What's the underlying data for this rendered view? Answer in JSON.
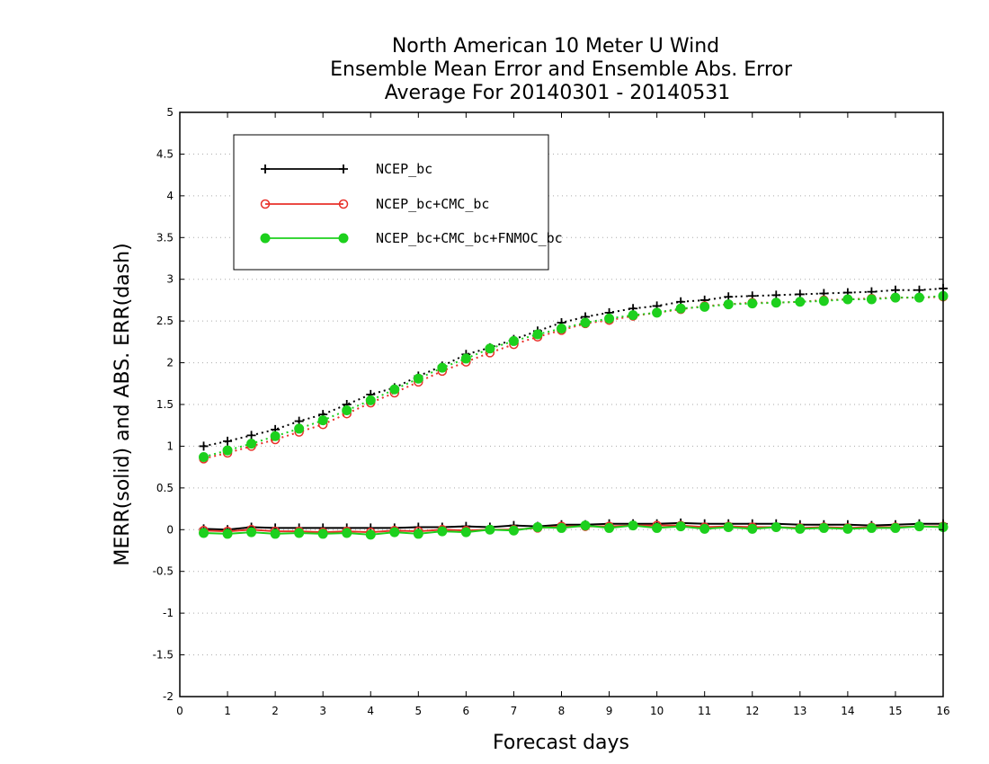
{
  "chart_data": {
    "type": "line",
    "title_lines": [
      "North American 10 Meter U Wind",
      "Ensemble Mean Error and Ensemble Abs. Error",
      "Average For 20140301 - 20140531"
    ],
    "xlabel": "Forecast days",
    "ylabel": "MERR(solid) and ABS. ERR(dash)",
    "xlim": [
      0,
      16
    ],
    "ylim": [
      -2,
      5
    ],
    "x_ticks": [
      "0",
      "1",
      "2",
      "3",
      "4",
      "5",
      "6",
      "7",
      "8",
      "9",
      "10",
      "11",
      "12",
      "13",
      "14",
      "15",
      "16"
    ],
    "y_ticks": [
      "-2",
      "-1.5",
      "-1",
      "-0.5",
      "0",
      "0.5",
      "1",
      "1.5",
      "2",
      "2.5",
      "3",
      "3.5",
      "4",
      "4.5",
      "5"
    ],
    "grid": "horizontal dotted",
    "legend_position": "top-left",
    "x": [
      0.5,
      1,
      1.5,
      2,
      2.5,
      3,
      3.5,
      4,
      4.5,
      5,
      5.5,
      6,
      6.5,
      7,
      7.5,
      8,
      8.5,
      9,
      9.5,
      10,
      10.5,
      11,
      11.5,
      12,
      12.5,
      13,
      13.5,
      14,
      14.5,
      15,
      15.5,
      16
    ],
    "series": [
      {
        "name": "NCEP_bc",
        "color": "#000000",
        "marker": "plus",
        "merr": [
          0.01,
          0.0,
          0.03,
          0.02,
          0.02,
          0.02,
          0.02,
          0.02,
          0.02,
          0.03,
          0.03,
          0.04,
          0.03,
          0.05,
          0.04,
          0.06,
          0.06,
          0.07,
          0.07,
          0.07,
          0.08,
          0.07,
          0.07,
          0.07,
          0.07,
          0.06,
          0.06,
          0.06,
          0.05,
          0.06,
          0.07,
          0.07
        ],
        "abs_err": [
          1.0,
          1.06,
          1.13,
          1.2,
          1.3,
          1.38,
          1.5,
          1.62,
          1.7,
          1.84,
          1.96,
          2.1,
          2.18,
          2.28,
          2.38,
          2.48,
          2.55,
          2.6,
          2.65,
          2.68,
          2.73,
          2.75,
          2.79,
          2.8,
          2.81,
          2.82,
          2.83,
          2.84,
          2.85,
          2.87,
          2.87,
          2.89
        ]
      },
      {
        "name": "NCEP_bc+CMC_bc",
        "color": "#e8312a",
        "marker": "circle",
        "merr": [
          -0.01,
          -0.02,
          0.0,
          -0.02,
          -0.02,
          -0.03,
          -0.02,
          -0.03,
          -0.01,
          -0.02,
          0.0,
          -0.01,
          0.0,
          0.0,
          0.02,
          0.04,
          0.04,
          0.04,
          0.05,
          0.05,
          0.05,
          0.03,
          0.04,
          0.03,
          0.03,
          0.02,
          0.03,
          0.02,
          0.03,
          0.03,
          0.04,
          0.04
        ],
        "abs_err": [
          0.85,
          0.92,
          1.0,
          1.08,
          1.17,
          1.26,
          1.39,
          1.52,
          1.64,
          1.77,
          1.9,
          2.01,
          2.12,
          2.22,
          2.31,
          2.39,
          2.47,
          2.51,
          2.56,
          2.6,
          2.64,
          2.68,
          2.7,
          2.72,
          2.72,
          2.73,
          2.75,
          2.76,
          2.77,
          2.78,
          2.78,
          2.79
        ]
      },
      {
        "name": "NCEP_bc+CMC_bc+FNMOC_bc",
        "color": "#1dd01d",
        "marker": "filled-circle",
        "merr": [
          -0.04,
          -0.05,
          -0.03,
          -0.05,
          -0.04,
          -0.05,
          -0.04,
          -0.06,
          -0.03,
          -0.05,
          -0.02,
          -0.03,
          0.0,
          -0.01,
          0.03,
          0.02,
          0.05,
          0.02,
          0.05,
          0.02,
          0.04,
          0.01,
          0.03,
          0.01,
          0.03,
          0.01,
          0.02,
          0.01,
          0.02,
          0.02,
          0.04,
          0.03
        ],
        "abs_err": [
          0.87,
          0.95,
          1.03,
          1.12,
          1.21,
          1.31,
          1.43,
          1.55,
          1.68,
          1.81,
          1.94,
          2.05,
          2.17,
          2.26,
          2.34,
          2.41,
          2.48,
          2.53,
          2.57,
          2.6,
          2.65,
          2.67,
          2.7,
          2.71,
          2.72,
          2.73,
          2.74,
          2.76,
          2.76,
          2.78,
          2.78,
          2.8
        ]
      }
    ]
  }
}
